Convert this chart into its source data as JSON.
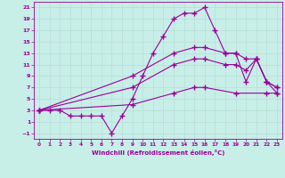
{
  "xlabel": "Windchill (Refroidissement éolien,°C)",
  "bg_color": "#c8eee8",
  "line_color": "#990099",
  "grid_color": "#b8ddd6",
  "xlim": [
    -0.5,
    23.5
  ],
  "ylim": [
    -2,
    22
  ],
  "xticks": [
    0,
    1,
    2,
    3,
    4,
    5,
    6,
    7,
    8,
    9,
    10,
    11,
    12,
    13,
    14,
    15,
    16,
    17,
    18,
    19,
    20,
    21,
    22,
    23
  ],
  "yticks": [
    -1,
    1,
    3,
    5,
    7,
    9,
    11,
    13,
    15,
    17,
    19,
    21
  ],
  "series1": [
    [
      0,
      3
    ],
    [
      1,
      3
    ],
    [
      2,
      3
    ],
    [
      3,
      2
    ],
    [
      4,
      2
    ],
    [
      5,
      2
    ],
    [
      6,
      2
    ],
    [
      7,
      -1
    ],
    [
      8,
      2
    ],
    [
      9,
      5
    ],
    [
      10,
      9
    ],
    [
      11,
      13
    ],
    [
      12,
      16
    ],
    [
      13,
      19
    ],
    [
      14,
      20
    ],
    [
      15,
      20
    ],
    [
      16,
      21
    ],
    [
      17,
      17
    ],
    [
      18,
      13
    ],
    [
      19,
      13
    ],
    [
      20,
      8
    ],
    [
      21,
      12
    ],
    [
      22,
      8
    ],
    [
      23,
      7
    ]
  ],
  "series2": [
    [
      0,
      3
    ],
    [
      9,
      9
    ],
    [
      13,
      13
    ],
    [
      15,
      14
    ],
    [
      16,
      14
    ],
    [
      18,
      13
    ],
    [
      19,
      13
    ],
    [
      20,
      12
    ],
    [
      21,
      12
    ],
    [
      22,
      8
    ],
    [
      23,
      7
    ]
  ],
  "series3": [
    [
      0,
      3
    ],
    [
      9,
      7
    ],
    [
      13,
      11
    ],
    [
      15,
      12
    ],
    [
      16,
      12
    ],
    [
      18,
      11
    ],
    [
      19,
      11
    ],
    [
      20,
      10
    ],
    [
      21,
      12
    ],
    [
      22,
      8
    ],
    [
      23,
      6
    ]
  ],
  "series4": [
    [
      0,
      3
    ],
    [
      9,
      4
    ],
    [
      13,
      6
    ],
    [
      15,
      7
    ],
    [
      16,
      7
    ],
    [
      19,
      6
    ],
    [
      22,
      6
    ],
    [
      23,
      6
    ]
  ]
}
